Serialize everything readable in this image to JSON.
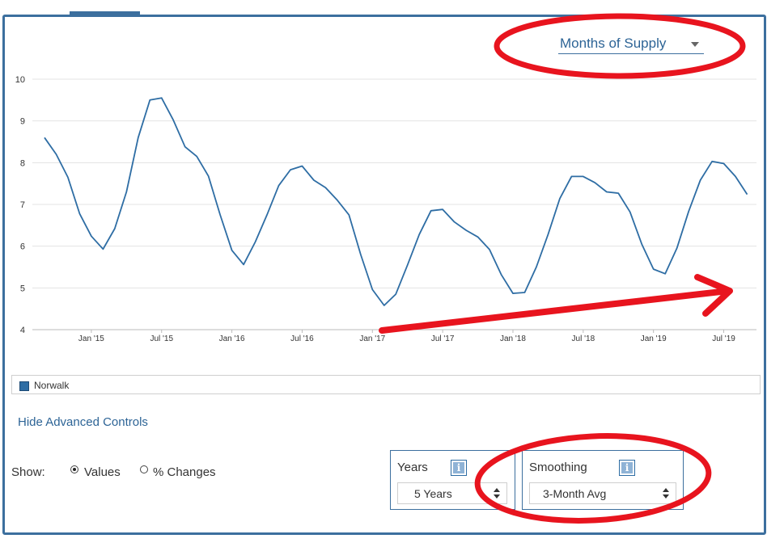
{
  "metric_selector": {
    "label": "Months of Supply"
  },
  "chart_data": {
    "type": "line",
    "series": [
      {
        "name": "Norwalk",
        "color": "#2e6da4",
        "x": [
          "2014-09",
          "2014-10",
          "2014-11",
          "2014-12",
          "2015-01",
          "2015-02",
          "2015-03",
          "2015-04",
          "2015-05",
          "2015-06",
          "2015-07",
          "2015-08",
          "2015-09",
          "2015-10",
          "2015-11",
          "2015-12",
          "2016-01",
          "2016-02",
          "2016-03",
          "2016-04",
          "2016-05",
          "2016-06",
          "2016-07",
          "2016-08",
          "2016-09",
          "2016-10",
          "2016-11",
          "2016-12",
          "2017-01",
          "2017-02",
          "2017-03",
          "2017-04",
          "2017-05",
          "2017-06",
          "2017-07",
          "2017-08",
          "2017-09",
          "2017-10",
          "2017-11",
          "2017-12",
          "2018-01",
          "2018-02",
          "2018-03",
          "2018-04",
          "2018-05",
          "2018-06",
          "2018-07",
          "2018-08",
          "2018-09",
          "2018-10",
          "2018-11",
          "2018-12",
          "2019-01",
          "2019-02",
          "2019-03",
          "2019-04",
          "2019-05",
          "2019-06",
          "2019-07",
          "2019-08",
          "2019-09"
        ],
        "values": [
          8.6,
          8.2,
          7.65,
          6.78,
          6.24,
          5.93,
          6.42,
          7.3,
          8.6,
          9.5,
          9.55,
          9.02,
          8.38,
          8.15,
          7.68,
          6.75,
          5.9,
          5.56,
          6.1,
          6.75,
          7.45,
          7.83,
          7.92,
          7.58,
          7.4,
          7.1,
          6.75,
          5.8,
          4.96,
          4.58,
          4.85,
          5.55,
          6.28,
          6.85,
          6.88,
          6.58,
          6.38,
          6.22,
          5.92,
          5.32,
          4.87,
          4.89,
          5.5,
          6.28,
          7.14,
          7.67,
          7.67,
          7.52,
          7.3,
          7.27,
          6.82,
          6.05,
          5.45,
          5.34,
          5.95,
          6.83,
          7.58,
          8.03,
          7.98,
          7.67,
          7.24
        ]
      }
    ],
    "x_ticks": [
      "Jan '15",
      "Jul '15",
      "Jan '16",
      "Jul '16",
      "Jan '17",
      "Jul '17",
      "Jan '18",
      "Jul '18",
      "Jan '19",
      "Jul '19"
    ],
    "x_tick_dates": [
      "2015-01",
      "2015-07",
      "2016-01",
      "2016-07",
      "2017-01",
      "2017-07",
      "2018-01",
      "2018-07",
      "2019-01",
      "2019-07"
    ],
    "y_ticks": [
      10,
      9,
      8,
      7,
      6,
      5,
      4
    ],
    "ylim": [
      4,
      10
    ],
    "xlim": [
      "2014-09",
      "2019-08"
    ],
    "grid": true,
    "legend": "bottom-left"
  },
  "legend": {
    "series_name": "Norwalk"
  },
  "advanced_link": "Hide Advanced Controls",
  "show": {
    "label": "Show:",
    "values": "Values",
    "changes": "% Changes",
    "selected": "Values"
  },
  "years": {
    "title": "Years",
    "info_icon": "i",
    "value": "5 Years"
  },
  "smoothing": {
    "title": "Smoothing",
    "info_icon": "i",
    "value": "3-Month Avg"
  },
  "annotations": {
    "ellipse_color": "#e8141e",
    "arrow_color": "#e8141e"
  }
}
